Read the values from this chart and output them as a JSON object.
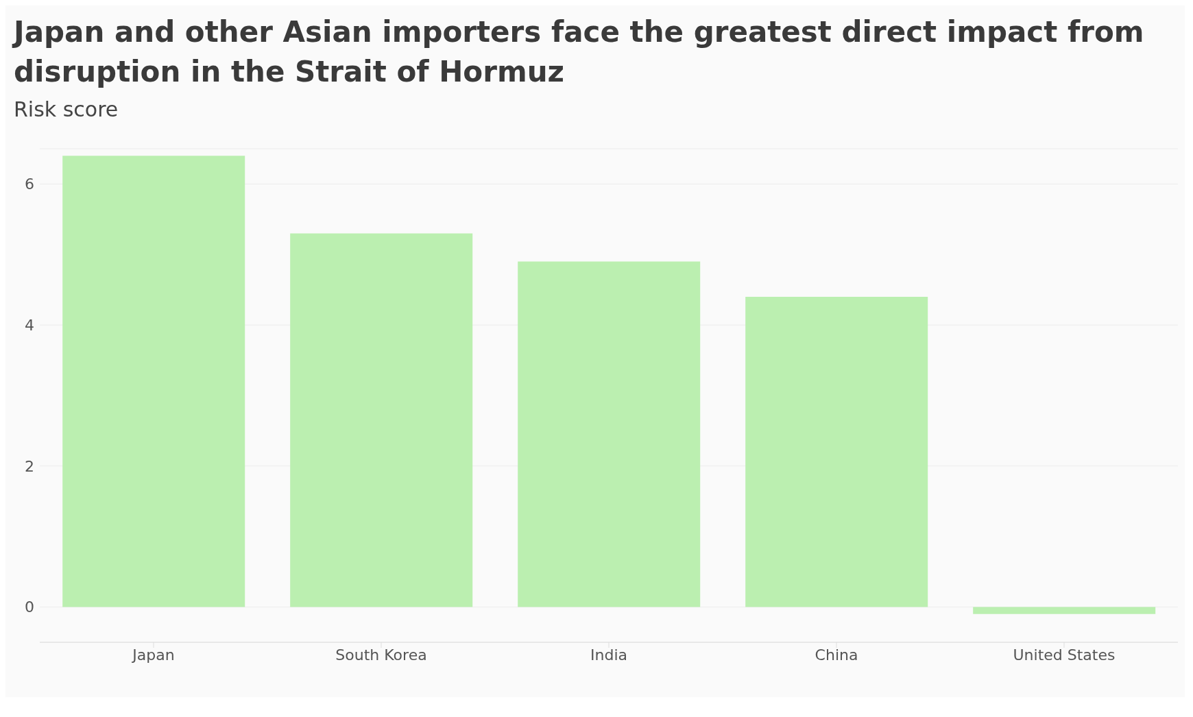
{
  "chart_data": {
    "type": "bar",
    "title": "Japan and other Asian importers face the greatest direct impact from disruption in the Strait of Hormuz",
    "subtitle": "Risk score",
    "categories": [
      "Japan",
      "South Korea",
      "India",
      "China",
      "United States"
    ],
    "values": [
      6.4,
      5.3,
      4.9,
      4.4,
      -0.1
    ],
    "color": "#bbefb0",
    "ylim": [
      -0.5,
      6.5
    ],
    "yticks": [
      0,
      2,
      4,
      6
    ],
    "grid": "y"
  }
}
